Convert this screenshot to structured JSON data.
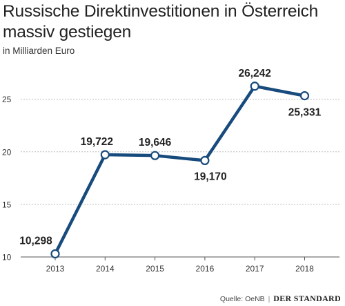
{
  "chart_data": {
    "type": "line",
    "title": "Russische Direktinvestitionen in Österreich massiv gestiegen",
    "subtitle": "in Milliarden Euro",
    "x": [
      "2013",
      "2014",
      "2015",
      "2016",
      "2017",
      "2018"
    ],
    "series": [
      {
        "values": [
          10.298,
          19.722,
          19.646,
          19.17,
          26.242,
          25.331
        ],
        "labels": [
          "10,298",
          "19,722",
          "19,646",
          "19,170",
          "26,242",
          "25,331"
        ],
        "color": "#184b7d"
      }
    ],
    "ylim": [
      10,
      28
    ],
    "yticks": [
      10,
      15,
      20,
      25
    ],
    "ytick_labels": [
      "10",
      "15",
      "20",
      "25"
    ],
    "grid": true,
    "legend": "none",
    "gridline_color": "#bbbbbb",
    "axis_color": "#555555"
  },
  "source": {
    "label": "Quelle: OeNB",
    "separator": "|",
    "brand": "DER STANDARD"
  }
}
